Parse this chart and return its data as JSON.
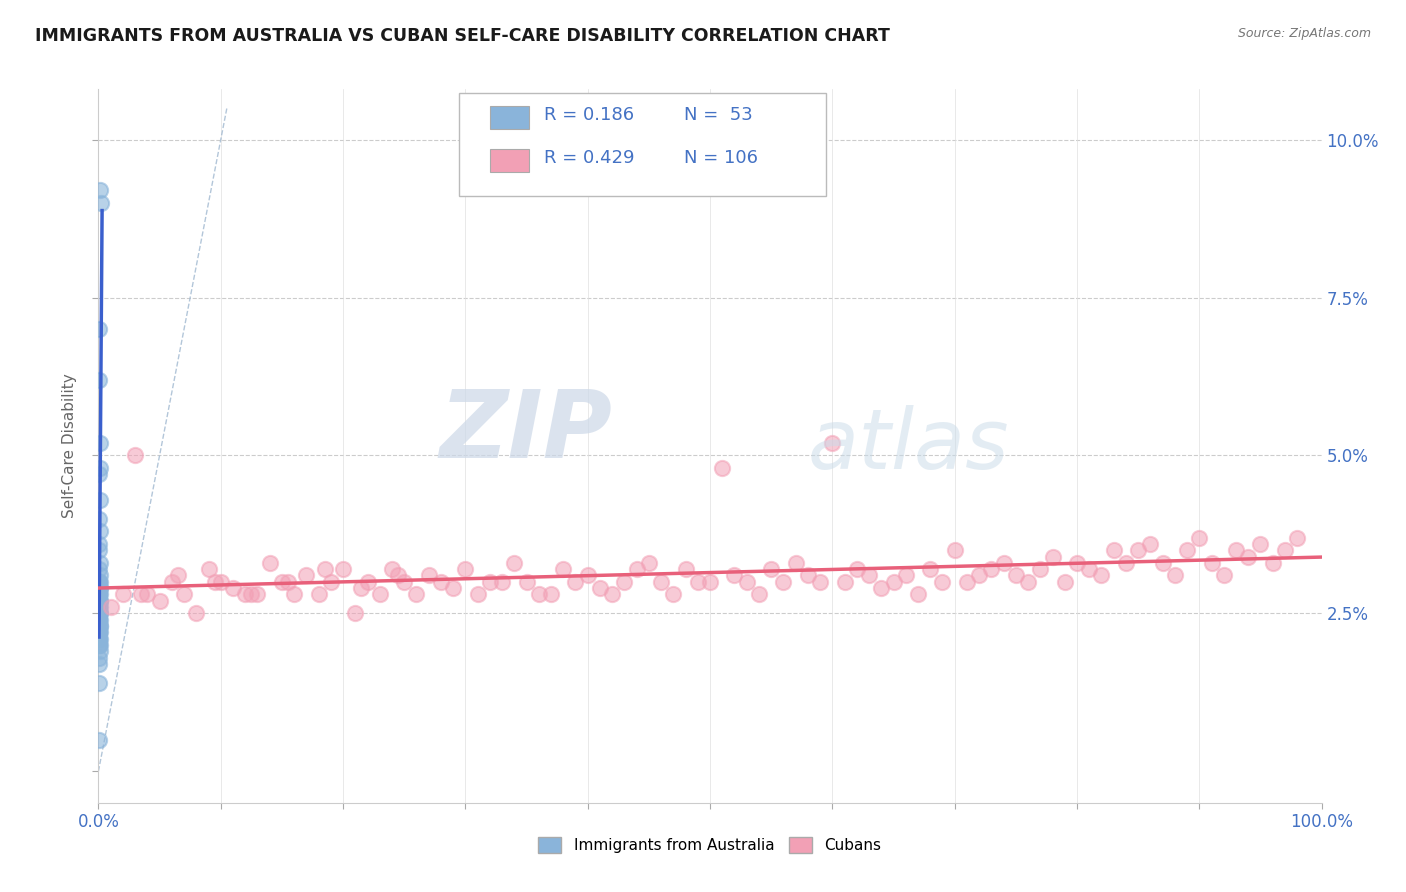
{
  "title": "IMMIGRANTS FROM AUSTRALIA VS CUBAN SELF-CARE DISABILITY CORRELATION CHART",
  "source": "Source: ZipAtlas.com",
  "ylabel": "Self-Care Disability",
  "yticks": [
    0.0,
    0.025,
    0.05,
    0.075,
    0.1
  ],
  "ytick_labels_right": [
    "",
    "2.5%",
    "5.0%",
    "7.5%",
    "10.0%"
  ],
  "xlim": [
    0.0,
    1.0
  ],
  "ylim": [
    -0.005,
    0.108
  ],
  "legend_r1": "R = 0.186",
  "legend_n1": "N =  53",
  "legend_r2": "R = 0.429",
  "legend_n2": "N = 106",
  "color_blue": "#8ab4da",
  "color_pink": "#f2a0b5",
  "color_blue_line": "#3a5fcd",
  "color_pink_line": "#e8607a",
  "color_diag": "#a0b8d0",
  "color_legend_text": "#4472c4",
  "watermark_zip": "ZIP",
  "watermark_atlas": "atlas",
  "background_color": "#ffffff",
  "aus_x": [
    0.0012,
    0.002,
    0.0005,
    0.0008,
    0.0015,
    0.001,
    0.0008,
    0.0012,
    0.0006,
    0.001,
    0.0005,
    0.0008,
    0.001,
    0.0007,
    0.0012,
    0.0008,
    0.001,
    0.0006,
    0.0009,
    0.0011,
    0.0007,
    0.0013,
    0.0005,
    0.0009,
    0.0011,
    0.0006,
    0.0008,
    0.0012,
    0.0007,
    0.0009,
    0.0005,
    0.001,
    0.0008,
    0.0006,
    0.001,
    0.0007,
    0.0009,
    0.0011,
    0.0006,
    0.0008,
    0.001,
    0.0007,
    0.0009,
    0.0005,
    0.0008,
    0.001,
    0.0006,
    0.0007,
    0.0009,
    0.0005,
    0.0008,
    0.0007,
    0.0006
  ],
  "aus_y": [
    0.092,
    0.09,
    0.07,
    0.062,
    0.052,
    0.048,
    0.047,
    0.043,
    0.04,
    0.038,
    0.036,
    0.035,
    0.033,
    0.032,
    0.031,
    0.03,
    0.03,
    0.03,
    0.029,
    0.029,
    0.028,
    0.028,
    0.028,
    0.027,
    0.027,
    0.027,
    0.026,
    0.026,
    0.026,
    0.025,
    0.025,
    0.025,
    0.025,
    0.024,
    0.024,
    0.024,
    0.023,
    0.023,
    0.022,
    0.022,
    0.022,
    0.022,
    0.021,
    0.021,
    0.021,
    0.02,
    0.02,
    0.02,
    0.019,
    0.018,
    0.017,
    0.014,
    0.005
  ],
  "cub_x": [
    0.01,
    0.02,
    0.03,
    0.04,
    0.05,
    0.06,
    0.07,
    0.08,
    0.09,
    0.1,
    0.11,
    0.12,
    0.13,
    0.14,
    0.15,
    0.16,
    0.17,
    0.18,
    0.19,
    0.2,
    0.21,
    0.22,
    0.23,
    0.24,
    0.25,
    0.26,
    0.27,
    0.28,
    0.29,
    0.3,
    0.31,
    0.32,
    0.33,
    0.34,
    0.35,
    0.36,
    0.37,
    0.38,
    0.39,
    0.4,
    0.41,
    0.42,
    0.43,
    0.44,
    0.45,
    0.46,
    0.47,
    0.48,
    0.49,
    0.5,
    0.51,
    0.52,
    0.53,
    0.54,
    0.55,
    0.56,
    0.57,
    0.58,
    0.59,
    0.6,
    0.61,
    0.62,
    0.63,
    0.64,
    0.65,
    0.66,
    0.67,
    0.68,
    0.69,
    0.7,
    0.71,
    0.72,
    0.73,
    0.74,
    0.75,
    0.76,
    0.77,
    0.78,
    0.79,
    0.8,
    0.81,
    0.82,
    0.83,
    0.84,
    0.85,
    0.86,
    0.87,
    0.88,
    0.89,
    0.9,
    0.91,
    0.92,
    0.93,
    0.94,
    0.95,
    0.96,
    0.97,
    0.98,
    0.035,
    0.065,
    0.095,
    0.125,
    0.155,
    0.185,
    0.215,
    0.245
  ],
  "cub_y": [
    0.026,
    0.028,
    0.05,
    0.028,
    0.027,
    0.03,
    0.028,
    0.025,
    0.032,
    0.03,
    0.029,
    0.028,
    0.028,
    0.033,
    0.03,
    0.028,
    0.031,
    0.028,
    0.03,
    0.032,
    0.025,
    0.03,
    0.028,
    0.032,
    0.03,
    0.028,
    0.031,
    0.03,
    0.029,
    0.032,
    0.028,
    0.03,
    0.03,
    0.033,
    0.03,
    0.028,
    0.028,
    0.032,
    0.03,
    0.031,
    0.029,
    0.028,
    0.03,
    0.032,
    0.033,
    0.03,
    0.028,
    0.032,
    0.03,
    0.03,
    0.048,
    0.031,
    0.03,
    0.028,
    0.032,
    0.03,
    0.033,
    0.031,
    0.03,
    0.052,
    0.03,
    0.032,
    0.031,
    0.029,
    0.03,
    0.031,
    0.028,
    0.032,
    0.03,
    0.035,
    0.03,
    0.031,
    0.032,
    0.033,
    0.031,
    0.03,
    0.032,
    0.034,
    0.03,
    0.033,
    0.032,
    0.031,
    0.035,
    0.033,
    0.035,
    0.036,
    0.033,
    0.031,
    0.035,
    0.037,
    0.033,
    0.031,
    0.035,
    0.034,
    0.036,
    0.033,
    0.035,
    0.037,
    0.028,
    0.031,
    0.03,
    0.028,
    0.03,
    0.032,
    0.029,
    0.031
  ]
}
